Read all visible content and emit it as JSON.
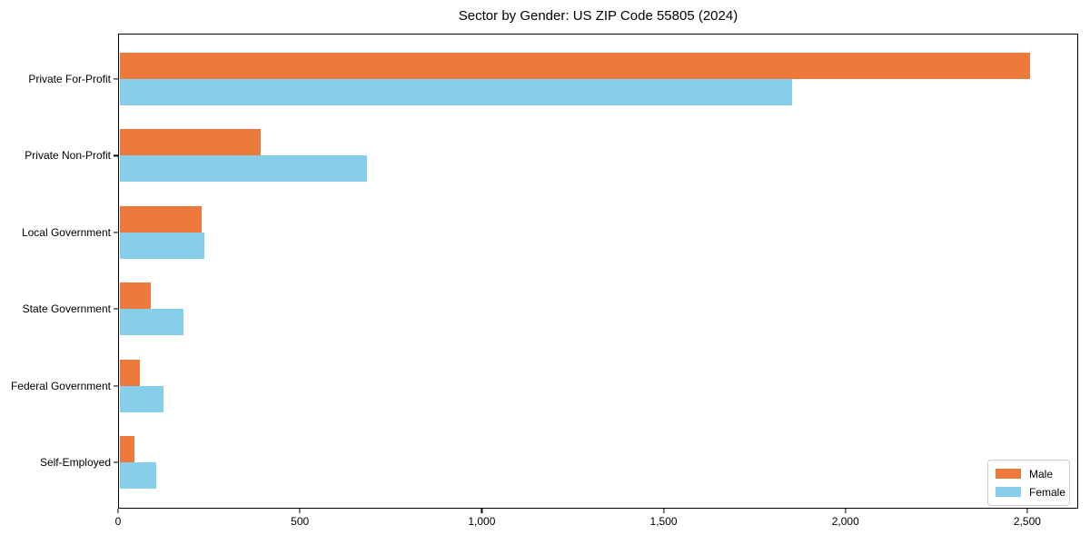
{
  "chart_data": {
    "type": "bar",
    "orientation": "horizontal",
    "title": "Sector by Gender: US ZIP Code 55805 (2024)",
    "categories": [
      "Private For-Profit",
      "Private Non-Profit",
      "Local Government",
      "State Government",
      "Federal Government",
      "Self-Employed"
    ],
    "series": [
      {
        "name": "Male",
        "color": "#EC7A3C",
        "values": [
          2507,
          392,
          230,
          90,
          60,
          45
        ]
      },
      {
        "name": "Female",
        "color": "#87CEEB",
        "values": [
          1854,
          684,
          237,
          180,
          125,
          105
        ]
      }
    ],
    "xlim": [
      0,
      2640
    ],
    "xticks": [
      0,
      500,
      1000,
      1500,
      2000,
      2500
    ],
    "xtick_labels": [
      "0",
      "500",
      "1,000",
      "1,500",
      "2,000",
      "2,500"
    ],
    "xlabel": "",
    "ylabel": "",
    "grid": false,
    "legend": {
      "position": "lower right",
      "entries": [
        "Male",
        "Female"
      ]
    }
  }
}
